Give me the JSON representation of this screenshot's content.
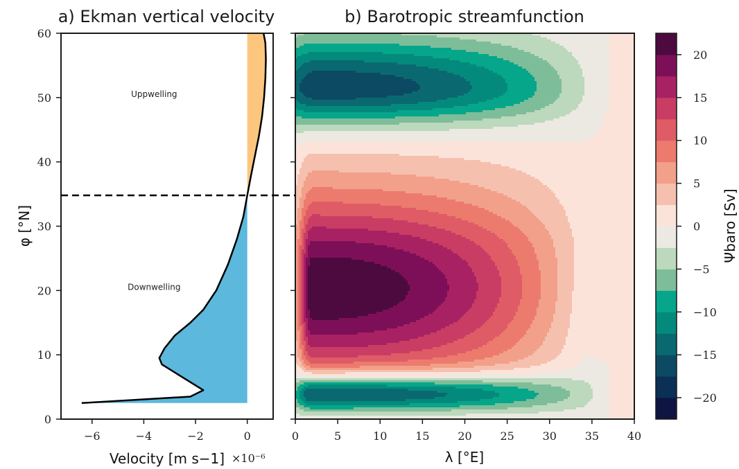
{
  "chart_data": [
    {
      "type": "area",
      "panel": "a",
      "title": "a) Ekman vertical velocity",
      "xlabel": "Velocity [m s−1]",
      "x_multiplier": "×10⁻⁶",
      "ylabel": "φ [°N]",
      "xlim": [
        -7.2,
        1.0
      ],
      "ylim": [
        0,
        60
      ],
      "xticks": [
        -6,
        -4,
        -2,
        0
      ],
      "yticks": [
        0,
        10,
        20,
        30,
        40,
        50,
        60
      ],
      "xtick_labels": [
        "−6",
        "−4",
        "−2",
        "0"
      ],
      "ytick_labels": [
        "0",
        "10",
        "20",
        "30",
        "40",
        "50",
        "60"
      ],
      "threshold_latitude": 34.8,
      "series": [
        {
          "x": [
            -6.4,
            -2.2,
            -1.7,
            -2.1,
            -2.7,
            -3.3,
            -3.4,
            -3.2,
            -2.8,
            -2.2,
            -1.7,
            -1.2,
            -0.75,
            -0.4,
            -0.15,
            0.0,
            0.15,
            0.3,
            0.45,
            0.57,
            0.65,
            0.7,
            0.72,
            0.7,
            0.63
          ],
          "y": [
            2.5,
            3.5,
            4.5,
            5.5,
            7.0,
            8.5,
            9.5,
            11.0,
            13.0,
            15.0,
            17.0,
            20.0,
            24.0,
            28.0,
            31.5,
            34.8,
            38.0,
            41.0,
            44.0,
            47.0,
            50.0,
            53.0,
            56.0,
            58.5,
            60.0
          ]
        }
      ],
      "fill_colors": {
        "downwelling": "#5cb8dc",
        "upwelling": "#fdc67e"
      },
      "annotations": [
        {
          "text": "Uppwelling",
          "x": -3.6,
          "y": 50.5
        },
        {
          "text": "Downwelling",
          "x": -3.6,
          "y": 20.5
        }
      ]
    },
    {
      "type": "heatmap",
      "panel": "b",
      "title": "b) Barotropic streamfunction",
      "xlabel": "λ [°E]",
      "xlim": [
        0,
        40
      ],
      "ylim": [
        0,
        60
      ],
      "xticks": [
        0,
        5,
        10,
        15,
        20,
        25,
        30,
        35,
        40
      ],
      "xtick_labels": [
        "0",
        "5",
        "10",
        "15",
        "20",
        "25",
        "30",
        "35",
        "40"
      ],
      "colorbar": {
        "label": "Ψbaro [Sv]",
        "levels": [
          -22.5,
          -20,
          -17.5,
          -15,
          -12.5,
          -10,
          -7.5,
          -5,
          -2.5,
          0,
          2.5,
          5,
          7.5,
          10,
          12.5,
          15,
          17.5,
          20,
          22.5
        ],
        "ticks": [
          -20,
          -15,
          -10,
          -5,
          0,
          5,
          10,
          15,
          20
        ],
        "tick_labels": [
          "−20",
          "−15",
          "−10",
          "−5",
          "0",
          "5",
          "10",
          "15",
          "20"
        ],
        "colors": [
          "#0e1542",
          "#0b2f55",
          "#0c4a63",
          "#0a6970",
          "#048a7c",
          "#06a68a",
          "#7ebd99",
          "#bcd8bd",
          "#ebe9e2",
          "#fbe3da",
          "#f6c0ae",
          "#f2a08a",
          "#ec7b6e",
          "#df5c66",
          "#c93d64",
          "#a82163",
          "#7d0f59",
          "#4d0a3e"
        ]
      },
      "gyres": [
        {
          "name": "subpolar",
          "sign": -1,
          "x0": 2.5,
          "y0": 51.5,
          "ax": 4.0,
          "bx": 34.0,
          "ay": 4.0,
          "by": 5.5,
          "amp": -17.0
        },
        {
          "name": "subtropical",
          "sign": 1,
          "x0": 2.0,
          "y0": 20.0,
          "ax": 1.2,
          "bx": 32.0,
          "ay": 10.5,
          "by": 10.5,
          "amp": 21.5
        },
        {
          "name": "tropical",
          "sign": -1,
          "x0": 2.0,
          "y0": 4.0,
          "ax": 1.5,
          "bx": 35.0,
          "ay": 2.2,
          "by": 2.2,
          "amp": -21.5
        }
      ]
    }
  ]
}
